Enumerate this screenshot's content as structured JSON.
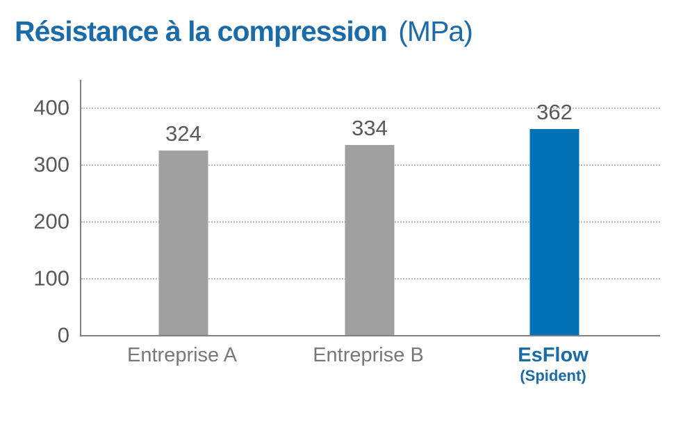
{
  "title": {
    "main": "Résistance à la compression",
    "units": "(MPa)"
  },
  "chart_data": {
    "type": "bar",
    "title": "Résistance à la compression (MPa)",
    "xlabel": "",
    "ylabel": "",
    "ylim": [
      0,
      400
    ],
    "ytick_interval": 100,
    "yticks": [
      "400",
      "300",
      "200",
      "100",
      "0"
    ],
    "grid": "horizontal dotted lines at each y tick",
    "legend": "none",
    "categories": [
      "Entreprise A",
      "Entreprise B",
      "EsFlow (Spident)"
    ],
    "values": [
      324,
      334,
      362
    ],
    "bars": [
      {
        "label": "Entreprise A",
        "sublabel": "",
        "value": 324,
        "color": "#a0a0a0"
      },
      {
        "label": "Entreprise B",
        "sublabel": "",
        "value": 334,
        "color": "#a0a0a0"
      },
      {
        "label": "EsFlow",
        "sublabel": "(Spident)",
        "value": 362,
        "color": "#0071b3"
      }
    ]
  },
  "colors": {
    "background": "#ffffff",
    "title_blue": "#1a6ba8",
    "highlight_bar_blue": "#0071b3",
    "default_bar_gray": "#a0a0a0",
    "axis_gray": "#808080",
    "gridline_gray": "#bdbdbd",
    "value_text_gray": "#58595b",
    "category_text_gray": "#77787b"
  }
}
